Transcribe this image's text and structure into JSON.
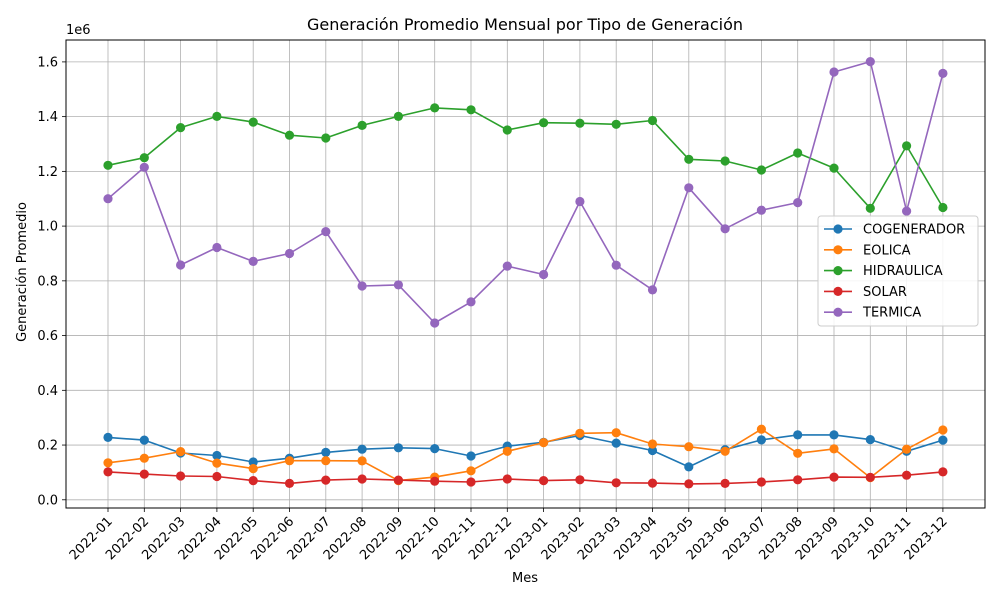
{
  "chart_data": {
    "type": "line",
    "title": "Generación Promedio Mensual por Tipo de Generación",
    "xlabel": "Mes",
    "ylabel": "Generación Promedio",
    "y_scale_label": "1e6",
    "ylim": [
      -0.03,
      1.68
    ],
    "yticks": [
      0.0,
      0.2,
      0.4,
      0.6,
      0.8,
      1.0,
      1.2,
      1.4,
      1.6
    ],
    "ytick_labels": [
      "0.0",
      "0.2",
      "0.4",
      "0.6",
      "0.8",
      "1.0",
      "1.2",
      "1.4",
      "1.6"
    ],
    "grid": true,
    "legend_position": "center-right",
    "x": [
      "2022-01",
      "2022-02",
      "2022-03",
      "2022-04",
      "2022-05",
      "2022-06",
      "2022-07",
      "2022-08",
      "2022-09",
      "2022-10",
      "2022-11",
      "2022-12",
      "2023-01",
      "2023-02",
      "2023-03",
      "2023-04",
      "2023-05",
      "2023-06",
      "2023-07",
      "2023-08",
      "2023-09",
      "2023-10",
      "2023-11",
      "2023-12"
    ],
    "series": [
      {
        "name": "COGENERADOR",
        "color": "#1f77b4",
        "values": [
          0.228,
          0.218,
          0.171,
          0.162,
          0.138,
          0.152,
          0.173,
          0.185,
          0.19,
          0.187,
          0.16,
          0.196,
          0.21,
          0.235,
          0.207,
          0.18,
          0.12,
          0.183,
          0.219,
          0.237,
          0.237,
          0.22,
          0.177,
          0.218
        ]
      },
      {
        "name": "EOLICA",
        "color": "#ff7f0e",
        "values": [
          0.135,
          0.152,
          0.176,
          0.134,
          0.114,
          0.143,
          0.143,
          0.142,
          0.07,
          0.083,
          0.106,
          0.177,
          0.209,
          0.243,
          0.245,
          0.204,
          0.194,
          0.177,
          0.258,
          0.17,
          0.186,
          0.081,
          0.185,
          0.255
        ]
      },
      {
        "name": "HIDRAULICA",
        "color": "#2ca02c",
        "values": [
          1.222,
          1.25,
          1.36,
          1.401,
          1.38,
          1.332,
          1.322,
          1.368,
          1.401,
          1.432,
          1.425,
          1.351,
          1.378,
          1.376,
          1.372,
          1.386,
          1.244,
          1.238,
          1.205,
          1.267,
          1.212,
          1.065,
          1.293,
          1.068
        ]
      },
      {
        "name": "SOLAR",
        "color": "#d62728",
        "values": [
          0.102,
          0.094,
          0.087,
          0.085,
          0.07,
          0.06,
          0.072,
          0.076,
          0.072,
          0.068,
          0.065,
          0.076,
          0.07,
          0.073,
          0.062,
          0.061,
          0.058,
          0.06,
          0.065,
          0.073,
          0.083,
          0.082,
          0.09,
          0.102
        ]
      },
      {
        "name": "TERMICA",
        "color": "#9467bd",
        "values": [
          1.1,
          1.215,
          0.858,
          0.922,
          0.871,
          0.9,
          0.98,
          0.781,
          0.785,
          0.646,
          0.723,
          0.854,
          0.823,
          1.09,
          0.857,
          0.767,
          1.14,
          0.99,
          1.058,
          1.086,
          1.563,
          1.601,
          1.055,
          1.558
        ]
      }
    ]
  }
}
